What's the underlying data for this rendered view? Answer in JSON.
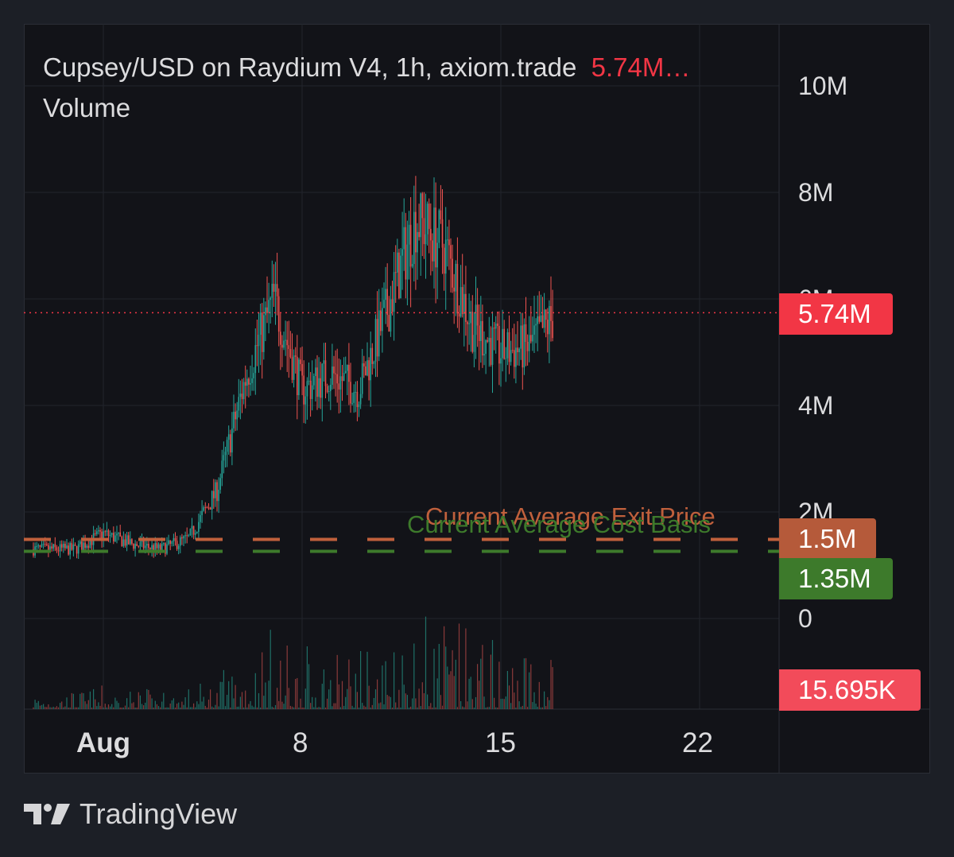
{
  "legend": {
    "title": "Cupsey/USD on Raydium V4, 1h, axiom.trade",
    "last_value": "5.74M…",
    "volume_label": "Volume"
  },
  "price_axis": [
    "10M",
    "8M",
    "6M",
    "4M",
    "2M",
    "0"
  ],
  "badges": {
    "last_price": "5.74M",
    "exit_price": "1.5M",
    "cost_basis": "1.35M",
    "volume": "15.695K"
  },
  "time_axis": [
    "Aug",
    "8",
    "15",
    "22"
  ],
  "lines": {
    "exit_label": "Current Average Exit Price",
    "cost_label": "Current Average Cost Basis"
  },
  "brand": "TradingView",
  "colors": {
    "up": "#26a69a",
    "down": "#ef5350",
    "last_price": "#f23645",
    "exit": "#c0603c",
    "cost": "#3d7a2b"
  },
  "chart_data": {
    "type": "candlestick",
    "title": "Cupsey/USD on Raydium V4, 1h, axiom.trade",
    "ylim": [
      0,
      10000000
    ],
    "x_range": [
      "2025-07-30",
      "2025-08-24"
    ],
    "last_close": 5740000,
    "last_volume": 15695,
    "horizontal_lines": [
      {
        "name": "Current Average Exit Price",
        "value": 1500000
      },
      {
        "name": "Current Average Cost Basis",
        "value": 1350000
      },
      {
        "name": "last",
        "value": 5740000
      }
    ],
    "series": [
      {
        "name": "price",
        "x": [
          "Jul 31",
          "Aug 1",
          "Aug 2",
          "Aug 3",
          "Aug 4",
          "Aug 5",
          "Aug 6",
          "Aug 7",
          "Aug 8",
          "Aug 9",
          "Aug 10",
          "Aug 11",
          "Aug 12",
          "Aug 13",
          "Aug 14",
          "Aug 15",
          "Aug 16",
          "Aug 17"
        ],
        "values": [
          1300000,
          1600000,
          1400000,
          1300000,
          1500000,
          2400000,
          4500000,
          6000000,
          4300000,
          4600000,
          4300000,
          5800000,
          7500000,
          7000000,
          5500000,
          5000000,
          5100000,
          5740000
        ]
      }
    ]
  }
}
